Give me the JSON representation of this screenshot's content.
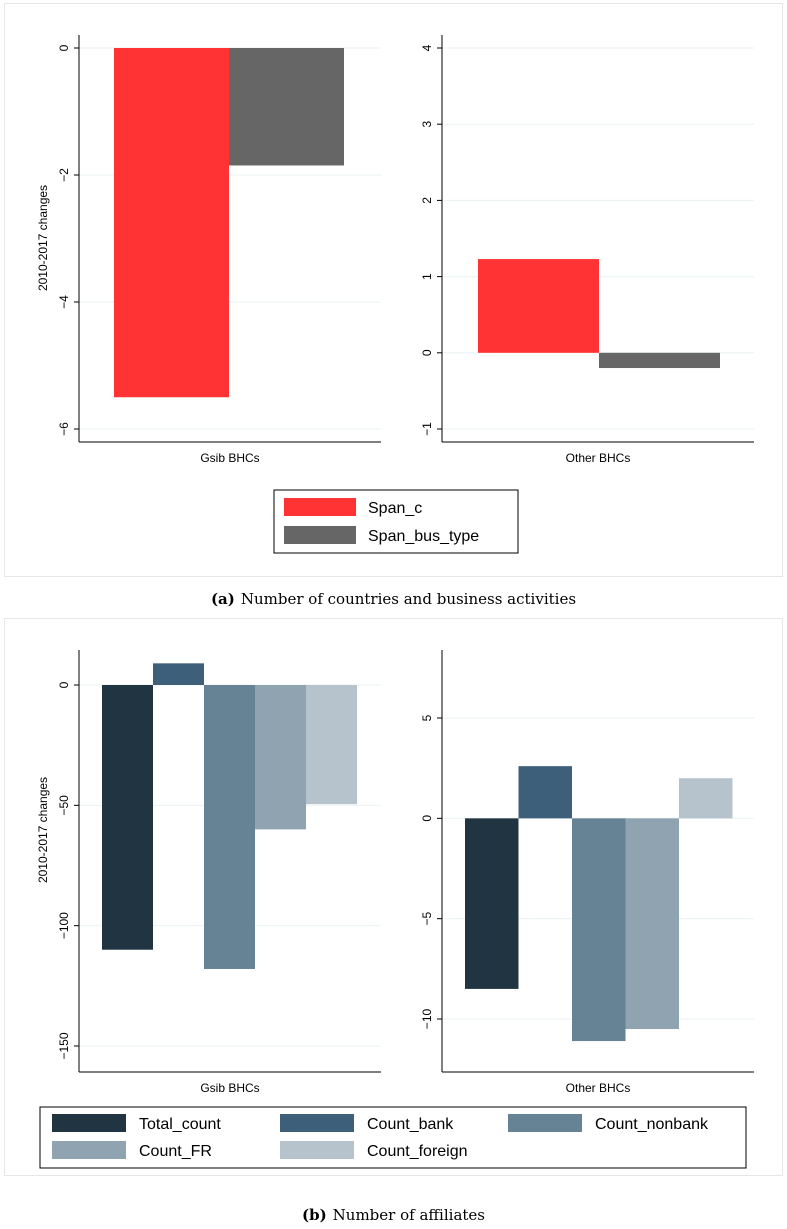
{
  "captions": [
    {
      "label": "(a)",
      "text": "Number of countries and business activities"
    },
    {
      "label": "(b)",
      "text": "Number of affiliates"
    }
  ],
  "chart_data": [
    {
      "type": "bar",
      "ylabel": "2010-2017 changes",
      "categories": [
        "Gsib BHCs",
        "Other BHCs"
      ],
      "series": [
        {
          "name": "Span_c",
          "color": "#ff3333",
          "values": [
            -5.5,
            1.23
          ]
        },
        {
          "name": "Span_bus_type",
          "color": "#666666",
          "values": [
            -1.85,
            -0.2
          ]
        }
      ],
      "ylim_panels": [
        [
          -6,
          0
        ],
        [
          -1,
          4
        ]
      ],
      "yticks_panels": [
        [
          0,
          -2,
          -4,
          -6
        ],
        [
          4,
          3,
          2,
          1,
          0,
          -1
        ]
      ],
      "legend_position": "bottom",
      "grid": true
    },
    {
      "type": "bar",
      "ylabel": "2010-2017 changes",
      "categories": [
        "Gsib BHCs",
        "Other BHCs"
      ],
      "series": [
        {
          "name": "Total_count",
          "color": "#213442",
          "values": [
            -110,
            -8.5
          ]
        },
        {
          "name": "Count_bank",
          "color": "#3e5f7a",
          "values": [
            9,
            2.6
          ]
        },
        {
          "name": "Count_nonbank",
          "color": "#668396",
          "values": [
            -118,
            -11.1
          ]
        },
        {
          "name": "Count_FR",
          "color": "#8fa3b0",
          "values": [
            -60,
            -10.5
          ]
        },
        {
          "name": "Count_foreign",
          "color": "#b6c3cd",
          "values": [
            -49.5,
            2
          ]
        }
      ],
      "ylim_panels": [
        [
          -150,
          0
        ],
        [
          -10,
          5
        ]
      ],
      "yticks_panels": [
        [
          0,
          -50,
          -100,
          -150
        ],
        [
          5,
          0,
          -5,
          -10
        ]
      ],
      "legend_position": "bottom",
      "grid": true
    }
  ]
}
